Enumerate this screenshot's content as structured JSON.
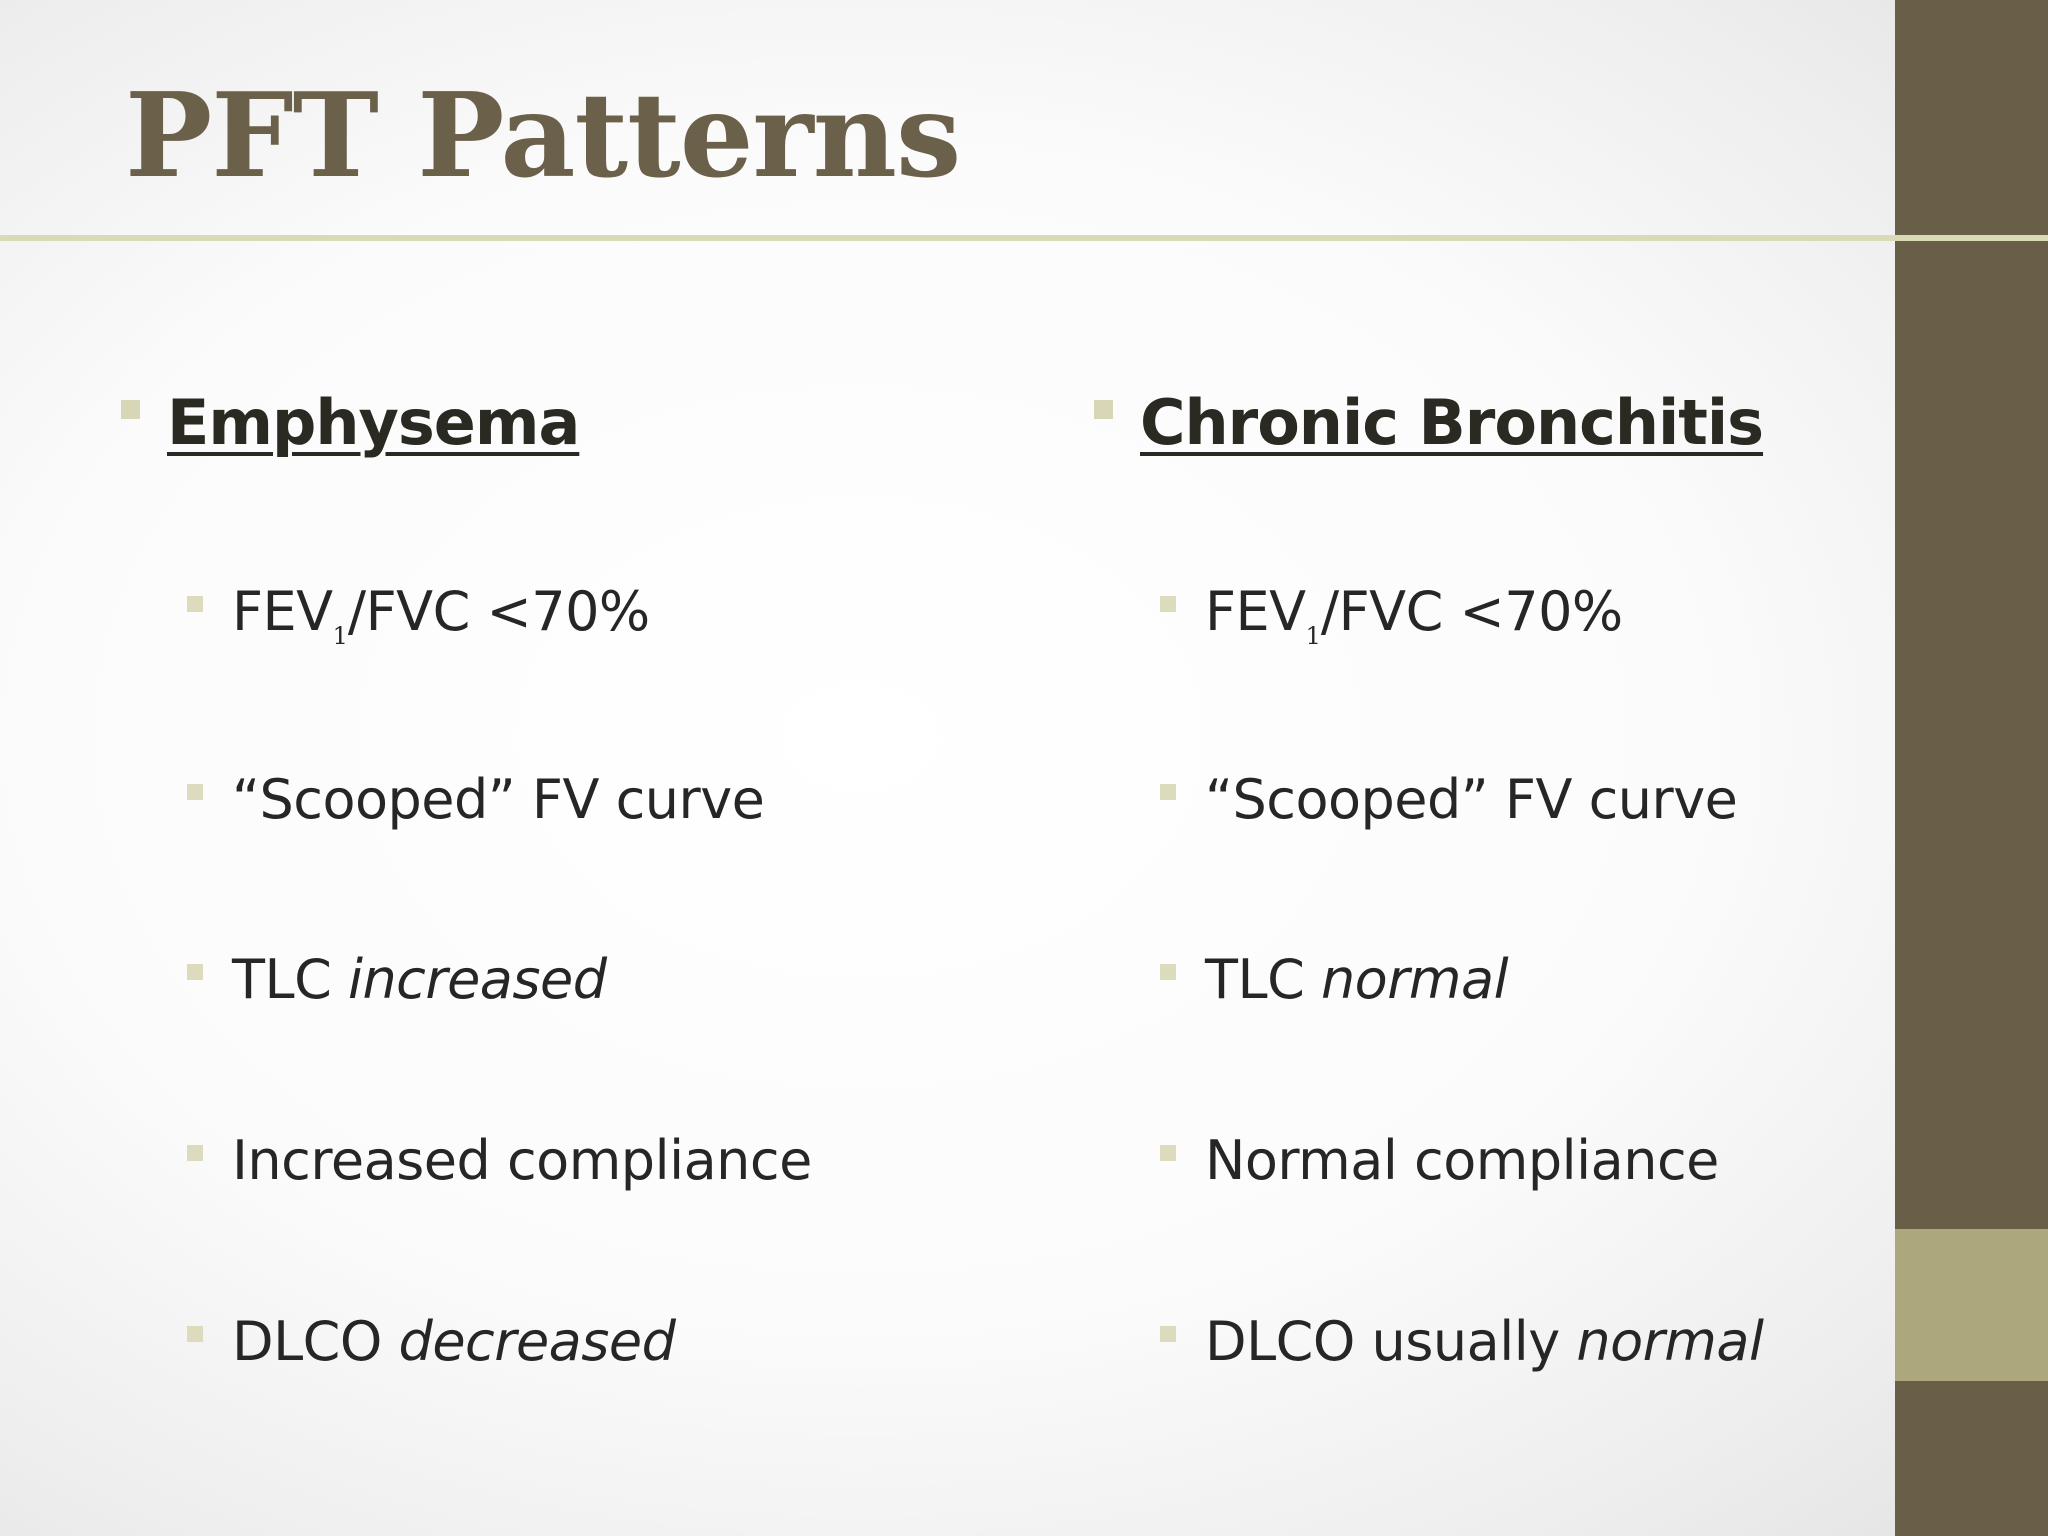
{
  "slide": {
    "title": "PFT Patterns",
    "colors": {
      "title": "#6b614a",
      "sidebar": "#695e47",
      "sidebar_accent": "#aca77d",
      "rule": "#d9dbb7",
      "bullet": "#d7d6b6",
      "text": "#262626"
    }
  },
  "columns": [
    {
      "heading": "Emphysema",
      "items": [
        {
          "pre": "FEV",
          "sub": "1",
          "post": "/FVC  <70%",
          "emph": ""
        },
        {
          "pre": "“Scooped” FV curve",
          "sub": "",
          "post": "",
          "emph": ""
        },
        {
          "pre": "TLC ",
          "sub": "",
          "post": "",
          "emph": "increased"
        },
        {
          "pre": "Increased compliance",
          "sub": "",
          "post": "",
          "emph": ""
        },
        {
          "pre": "DLCO ",
          "sub": "",
          "post": "",
          "emph": "decreased"
        }
      ]
    },
    {
      "heading": "Chronic Bronchitis",
      "items": [
        {
          "pre": "FEV",
          "sub": "1",
          "post": "/FVC <70%",
          "emph": ""
        },
        {
          "pre": "“Scooped” FV curve",
          "sub": "",
          "post": "",
          "emph": ""
        },
        {
          "pre": "TLC ",
          "sub": "",
          "post": "",
          "emph": "normal"
        },
        {
          "pre": "Normal compliance",
          "sub": "",
          "post": "",
          "emph": ""
        },
        {
          "pre": "DLCO usually ",
          "sub": "",
          "post": "",
          "emph": "normal"
        }
      ]
    }
  ]
}
